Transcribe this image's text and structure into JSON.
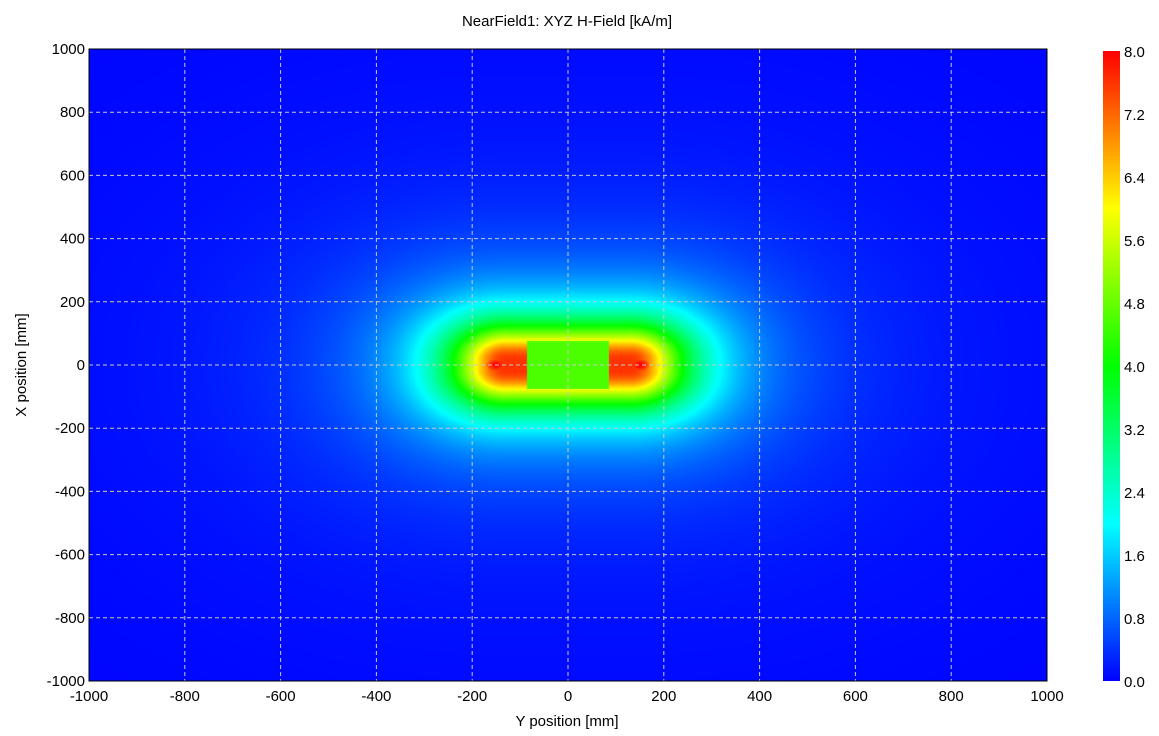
{
  "chart_data": {
    "type": "heatmap",
    "title": "NearField1: XYZ H-Field [kA/m]",
    "xlabel": "Y position [mm]",
    "ylabel": "X position [mm]",
    "xlim": [
      -1000,
      1000
    ],
    "ylim": [
      -1000,
      1000
    ],
    "x_ticks": [
      -1000,
      -800,
      -600,
      -400,
      -200,
      0,
      200,
      400,
      600,
      800,
      1000
    ],
    "y_ticks": [
      -1000,
      -800,
      -600,
      -400,
      -200,
      0,
      200,
      400,
      600,
      800,
      1000
    ],
    "x_tick_labels": [
      "-1000",
      "-800",
      "-600",
      "-400",
      "-200",
      "0",
      "200",
      "400",
      "600",
      "800",
      "1000"
    ],
    "y_tick_labels": [
      "-1000",
      "-800",
      "-600",
      "-400",
      "-200",
      "0",
      "200",
      "400",
      "600",
      "800",
      "1000"
    ],
    "grid": true,
    "colorbar": {
      "range": [
        0.0,
        8.0
      ],
      "ticks": [
        0.0,
        0.8,
        1.6,
        2.4,
        3.2,
        4.0,
        4.8,
        5.6,
        6.4,
        7.2,
        8.0
      ],
      "tick_labels": [
        "0.0",
        "0.8",
        "1.6",
        "2.4",
        "3.2",
        "4.0",
        "4.8",
        "5.6",
        "6.4",
        "7.2",
        "8.0"
      ],
      "placement": "right",
      "colors": [
        "#0000ff",
        "#00ffff",
        "#00ff00",
        "#ffff00",
        "#ff0000"
      ]
    },
    "field_peaks": [
      {
        "y": -150,
        "x": 0,
        "value": 8.0
      },
      {
        "y": 150,
        "x": 0,
        "value": 8.0
      }
    ],
    "field_center": {
      "y": 0,
      "x": 0,
      "value": 4.6
    },
    "background_value": 0.0
  }
}
